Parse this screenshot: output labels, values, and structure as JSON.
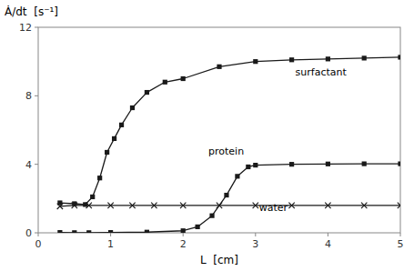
{
  "chart_data": {
    "type": "line",
    "xlabel": "L  [cm]",
    "ylabel": "Ȧ/dt  [s⁻¹]",
    "xlim": [
      0,
      5
    ],
    "ylim": [
      0,
      12
    ],
    "xticks": [
      0,
      1,
      2,
      3,
      4,
      5
    ],
    "yticks": [
      0,
      4,
      8,
      12
    ],
    "grid": false,
    "series": [
      {
        "color": "#1a1a1a",
        "marker": "square",
        "x": [
          0.3,
          0.5,
          0.65,
          0.75,
          0.85,
          0.95,
          1.05,
          1.15,
          1.3,
          1.5,
          1.75,
          2.0,
          2.5,
          3.0,
          3.5,
          4.0,
          4.5,
          5.0
        ],
        "values": [
          1.75,
          1.7,
          1.65,
          2.1,
          3.2,
          4.7,
          5.5,
          6.3,
          7.3,
          8.2,
          8.8,
          9.0,
          9.7,
          10.0,
          10.1,
          10.15,
          10.2,
          10.25
        ]
      },
      {
        "color": "#1a1a1a",
        "marker": "square",
        "x": [
          0.3,
          0.5,
          0.7,
          1.0,
          1.5,
          2.0,
          2.2,
          2.4,
          2.6,
          2.75,
          2.9,
          3.0,
          3.5,
          4.0,
          4.5,
          5.0
        ],
        "values": [
          0.02,
          0.01,
          0.01,
          0.02,
          0.04,
          0.12,
          0.35,
          1.0,
          2.2,
          3.3,
          3.85,
          3.95,
          4.0,
          4.02,
          4.03,
          4.03
        ]
      },
      {
        "color": "#1a1a1a",
        "marker": "x",
        "x": [
          0.3,
          0.5,
          0.7,
          1.0,
          1.3,
          1.6,
          2.0,
          2.5,
          3.0,
          3.5,
          4.0,
          4.5,
          5.0
        ],
        "values": [
          1.55,
          1.6,
          1.6,
          1.6,
          1.6,
          1.6,
          1.6,
          1.6,
          1.6,
          1.6,
          1.6,
          1.6,
          1.6
        ]
      }
    ],
    "annotations": [
      {
        "x": 3.55,
        "y": 9.1,
        "text": "surfactant"
      },
      {
        "x": 2.35,
        "y": 4.45,
        "text": "protein"
      },
      {
        "x": 3.05,
        "y": 1.15,
        "text": "water"
      }
    ]
  }
}
